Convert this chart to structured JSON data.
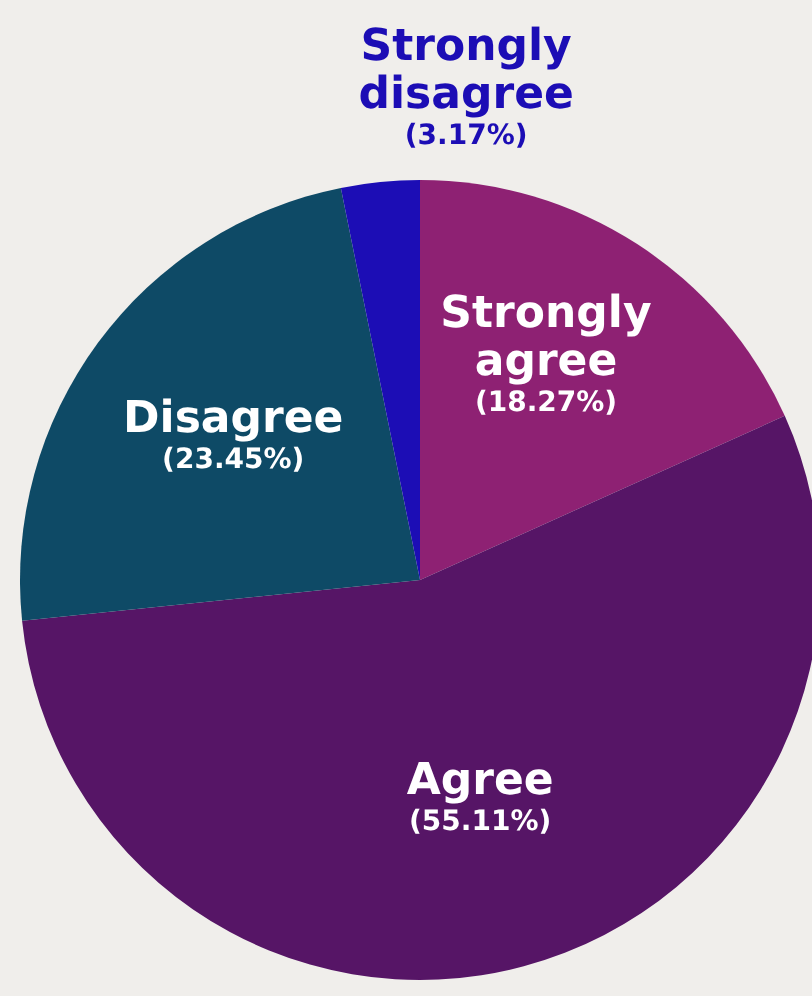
{
  "chart_data": {
    "type": "pie",
    "categories": [
      "Strongly agree",
      "Agree",
      "Disagree",
      "Strongly disagree"
    ],
    "values": [
      18.27,
      55.11,
      23.45,
      3.17
    ],
    "colors": [
      "#8e2173",
      "#561566",
      "#0e4a66",
      "#1c0db5"
    ],
    "value_labels": [
      "(18.27%)",
      "(55.11%)",
      "(23.45%)",
      "(3.17%)"
    ],
    "legend": false
  }
}
